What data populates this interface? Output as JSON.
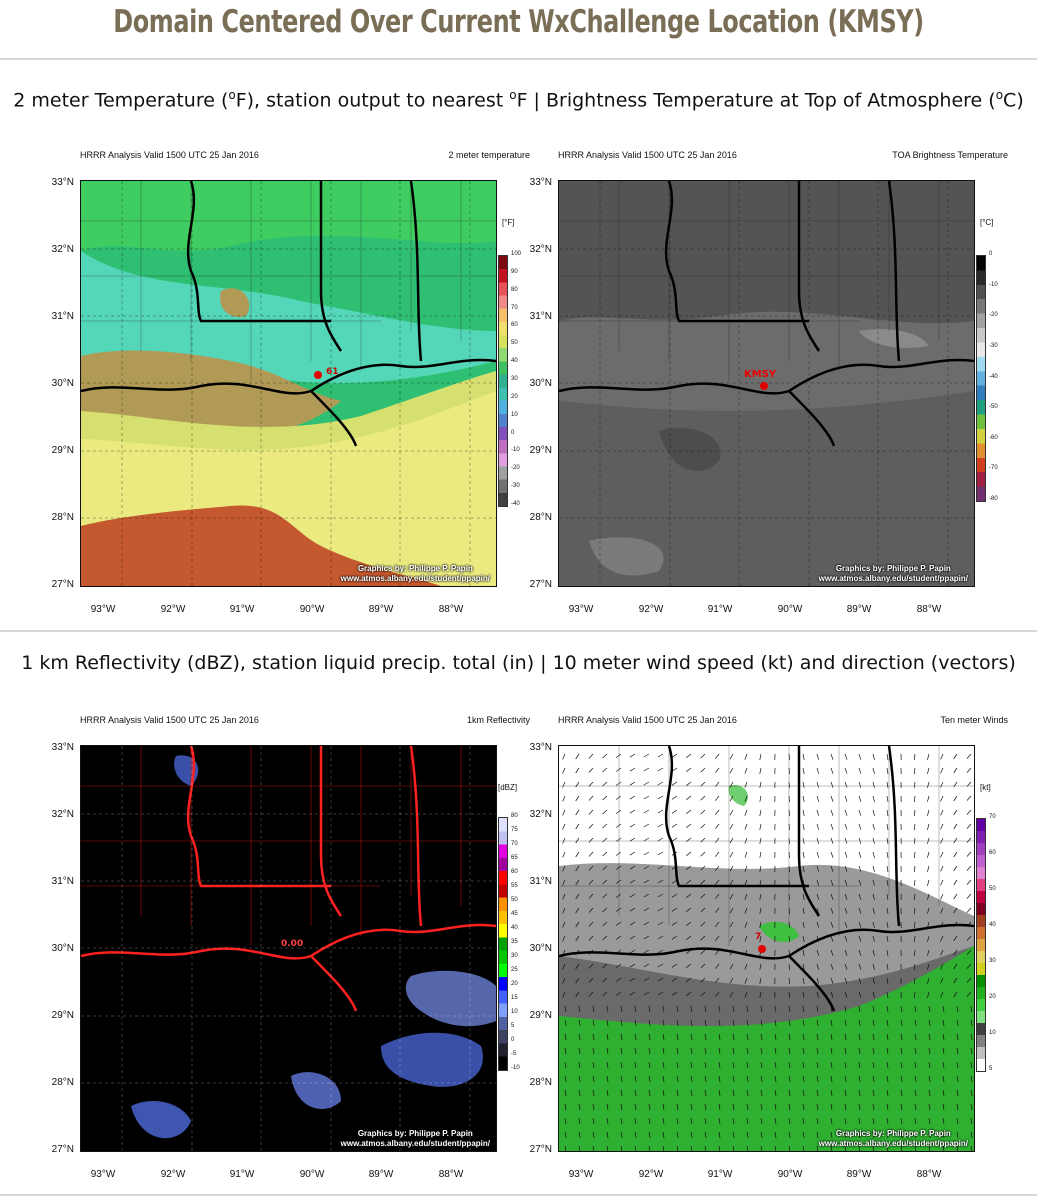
{
  "page": {
    "title": "Domain Centered Over Current WxChallenge Location (KMSY)"
  },
  "sections": [
    {
      "caption_parts": [
        "2 meter Temperature (",
        "o",
        "F), station output to nearest ",
        "o",
        "F | Brightness Temperature at Top of Atmosphere (",
        "o",
        "C)"
      ]
    },
    {
      "caption": "1 km Reflectivity (dBZ), station liquid precip. total (in) | 10 meter wind speed (kt) and direction (vectors)"
    }
  ],
  "lat_labels": [
    "33°N",
    "32°N",
    "31°N",
    "30°N",
    "29°N",
    "28°N",
    "27°N"
  ],
  "lon_labels": [
    "93°W",
    "92°W",
    "91°W",
    "90°W",
    "89°W",
    "88°W"
  ],
  "credit": {
    "line1": "Graphics by: Philippe P. Papin",
    "line2": "www.atmos.albany.edu/student/ppapin/"
  },
  "panels": [
    {
      "valid": "HRRR Analysis Valid 1500 UTC 25 Jan 2016",
      "field": "2 meter temperature",
      "unit": "[°F]",
      "colorbar_ticks": [
        "100",
        "90",
        "80",
        "70",
        "60",
        "50",
        "40",
        "30",
        "20",
        "10",
        "0",
        "-10",
        "-20",
        "-30",
        "-40"
      ],
      "colorbar_colors": [
        "#7a0a10",
        "#c0141e",
        "#e8505a",
        "#f08a8a",
        "#f5c06a",
        "#f0e070",
        "#d8e060",
        "#90d870",
        "#40c060",
        "#30b090",
        "#40c0b0",
        "#50b0e0",
        "#5080d0",
        "#8050c0",
        "#c070c0",
        "#e0a0e0",
        "#a0a0a0",
        "#707070",
        "#404040"
      ],
      "station_label": "61"
    },
    {
      "valid": "HRRR Analysis Valid 1500 UTC 25 Jan 2016",
      "field": "TOA Brightness Temperature",
      "unit": "[°C]",
      "colorbar_ticks": [
        "0",
        "-10",
        "-20",
        "-30",
        "-40",
        "-50",
        "-60",
        "-70",
        "-80"
      ],
      "colorbar_colors": [
        "#050505",
        "#2a2a2a",
        "#505050",
        "#787878",
        "#a0a0a0",
        "#c8c8c8",
        "#e8e8e8",
        "#a0d8f0",
        "#60b0e0",
        "#3080c0",
        "#20a080",
        "#70c040",
        "#d0d040",
        "#e09030",
        "#d04020",
        "#a02040",
        "#703070"
      ],
      "station_label": "KMSY"
    },
    {
      "valid": "HRRR Analysis Valid 1500 UTC 25 Jan 2016",
      "field": "1km Reflectivity",
      "unit": "[dBZ]",
      "colorbar_ticks": [
        "80",
        "75",
        "70",
        "65",
        "60",
        "55",
        "50",
        "45",
        "40",
        "35",
        "30",
        "25",
        "20",
        "15",
        "10",
        "5",
        "0",
        "-5",
        "-10"
      ],
      "colorbar_colors": [
        "#e0e0ff",
        "#c0c0f0",
        "#e000e0",
        "#a000a0",
        "#ff0000",
        "#c00000",
        "#ff9000",
        "#ffc000",
        "#ffff00",
        "#00a000",
        "#00c800",
        "#00ff00",
        "#0000ff",
        "#4060ff",
        "#80a0ff",
        "#5060a0",
        "#404060",
        "#202030",
        "#000000"
      ],
      "station_label": "0.00"
    },
    {
      "valid": "HRRR Analysis Valid 1500 UTC 25 Jan 2016",
      "field": "Ten meter Winds",
      "unit": "[kt]",
      "colorbar_ticks": [
        "70",
        "60",
        "50",
        "40",
        "30",
        "20",
        "10",
        "5"
      ],
      "colorbar_colors": [
        "#6000a0",
        "#8020b0",
        "#a040c0",
        "#c060d0",
        "#e080d0",
        "#e04080",
        "#c00040",
        "#800020",
        "#a04020",
        "#d07030",
        "#e0a040",
        "#e0d060",
        "#d0d020",
        "#009000",
        "#20b020",
        "#40d040",
        "#80e080",
        "#404040",
        "#808080",
        "#c0c0c0",
        "#ffffff"
      ],
      "station_label": "7"
    }
  ]
}
